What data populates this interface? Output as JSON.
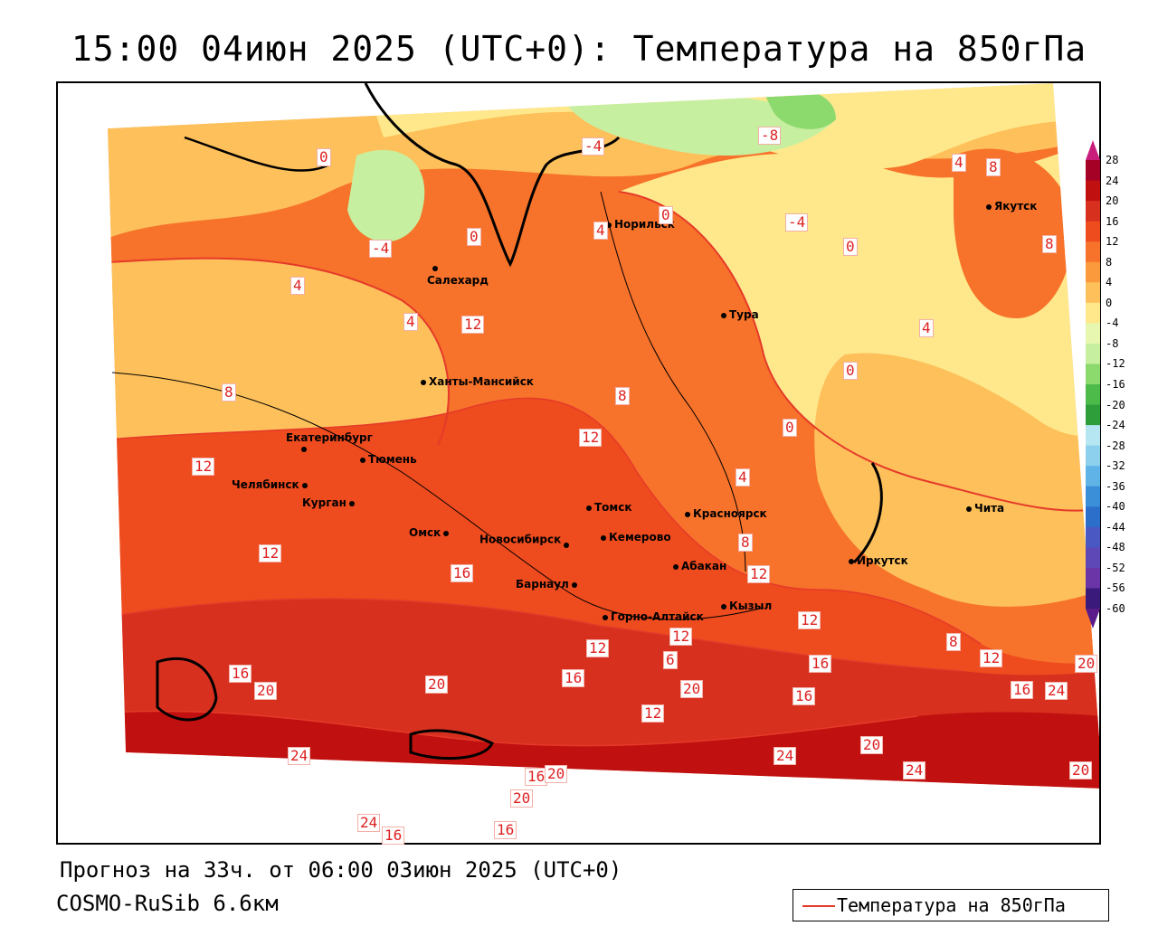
{
  "title": "15:00 04июн 2025 (UTC+0): Температура на 850гПа",
  "forecast_info": "Прогноз на 33ч. от 06:00 03июн 2025 (UTC+0)",
  "model_name": "COSMO-RuSib 6.6км",
  "legend": {
    "label": "Температура на 850гПа",
    "line_color": "#e53a2a"
  },
  "colorbar": {
    "ticks": [
      "28",
      "24",
      "20",
      "16",
      "12",
      "8",
      "4",
      "0",
      "-4",
      "-8",
      "-12",
      "-16",
      "-20",
      "-24",
      "-28",
      "-32",
      "-36",
      "-40",
      "-44",
      "-48",
      "-52",
      "-56",
      "-60"
    ],
    "colors": [
      "#a50026",
      "#c0100f",
      "#d7301f",
      "#ee4b1e",
      "#f7722a",
      "#fb9a3c",
      "#fdc05a",
      "#fee88b",
      "#e8f7b0",
      "#c7efa0",
      "#8cd96e",
      "#4cbb4a",
      "#2e9e3a",
      "#b5e6f2",
      "#8cd0ee",
      "#5fb3e6",
      "#3b8fd8",
      "#2c6fcb",
      "#4a58c4",
      "#5e48b8",
      "#6b35a8",
      "#3a1a7a"
    ]
  },
  "cities": [
    {
      "name": "Норильск"
    },
    {
      "name": "Якутск"
    },
    {
      "name": "Салехард"
    },
    {
      "name": "Тура"
    },
    {
      "name": "Ханты-Мансийск"
    },
    {
      "name": "Екатеринбург"
    },
    {
      "name": "Тюмень"
    },
    {
      "name": "Челябинск"
    },
    {
      "name": "Курган"
    },
    {
      "name": "Омск"
    },
    {
      "name": "Новосибирск"
    },
    {
      "name": "Томск"
    },
    {
      "name": "Кемерово"
    },
    {
      "name": "Красноярск"
    },
    {
      "name": "Барнаул"
    },
    {
      "name": "Абакан"
    },
    {
      "name": "Кызыл"
    },
    {
      "name": "Горно-Алтайск"
    },
    {
      "name": "Иркутск"
    },
    {
      "name": "Чита"
    }
  ],
  "contour_labels": [
    "-4",
    "-8",
    "-4",
    "0",
    "-4",
    "0",
    "4",
    "8",
    "4",
    "8",
    "0",
    "0",
    "4",
    "4",
    "4",
    "12",
    "8",
    "8",
    "12",
    "12",
    "0",
    "4",
    "8",
    "12",
    "12",
    "16",
    "16",
    "20",
    "12",
    "16",
    "12",
    "16",
    "20",
    "20",
    "16",
    "20",
    "24",
    "16",
    "20",
    "24",
    "20",
    "24",
    "16",
    "12",
    "6",
    "12",
    "8",
    "12",
    "20",
    "16",
    "20",
    "24",
    "24",
    "16",
    "0"
  ]
}
